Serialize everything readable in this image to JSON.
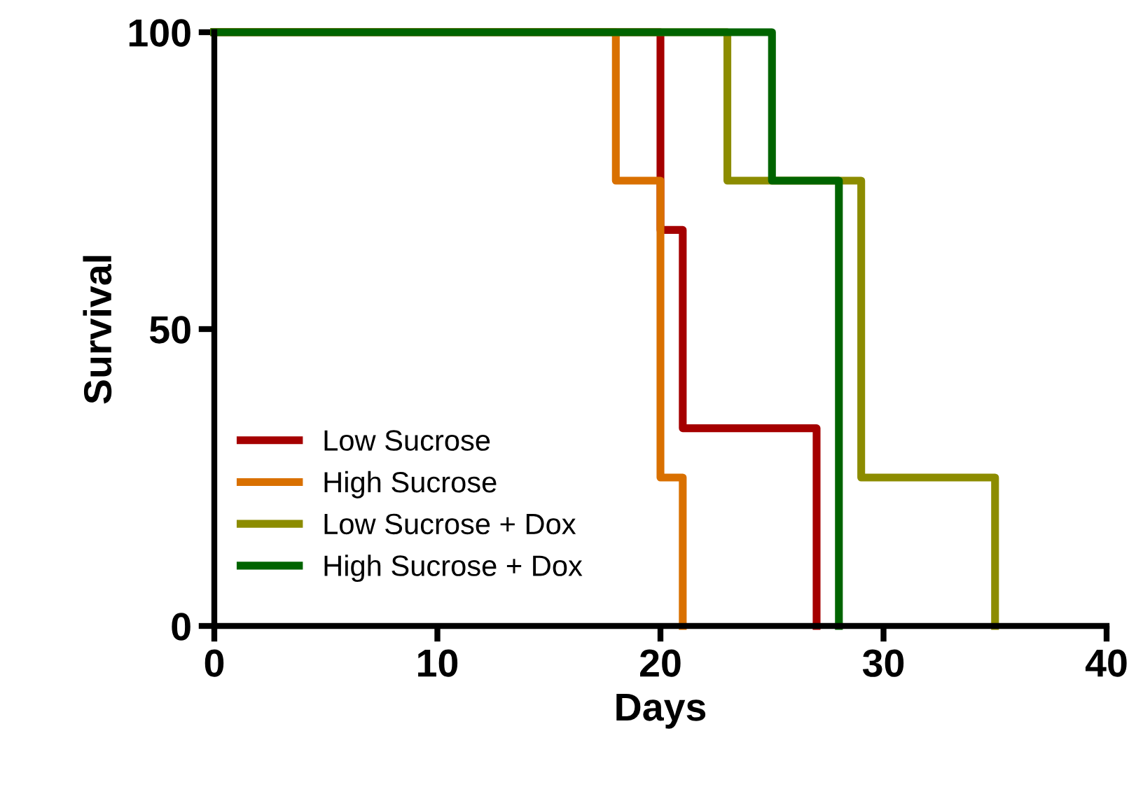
{
  "chart_data": {
    "type": "step",
    "xlabel": "Days",
    "ylabel": "Survival",
    "xlim": [
      0,
      40
    ],
    "xticks": [
      0,
      10,
      20,
      30,
      40
    ],
    "ylim": [
      0,
      100
    ],
    "yticks": [
      0,
      50,
      100
    ],
    "grid": false,
    "legend": "bottom left",
    "line_style": "solid",
    "marker": "none",
    "series": [
      {
        "name": "Low Sucrose",
        "color": "#a50000",
        "x": [
          0,
          20,
          21,
          27
        ],
        "values": [
          100,
          66.7,
          33.3,
          0
        ]
      },
      {
        "name": "High Sucrose",
        "color": "#d97000",
        "x": [
          0,
          18,
          20,
          21
        ],
        "values": [
          100,
          75,
          25,
          0
        ]
      },
      {
        "name": "Low Sucrose + Dox",
        "color": "#8c8c00",
        "x": [
          0,
          23,
          29,
          35
        ],
        "values": [
          100,
          75,
          25,
          0
        ]
      },
      {
        "name": "High Sucrose + Dox",
        "color": "#006400",
        "x": [
          0,
          25,
          28
        ],
        "values": [
          100,
          75,
          0
        ]
      }
    ]
  }
}
